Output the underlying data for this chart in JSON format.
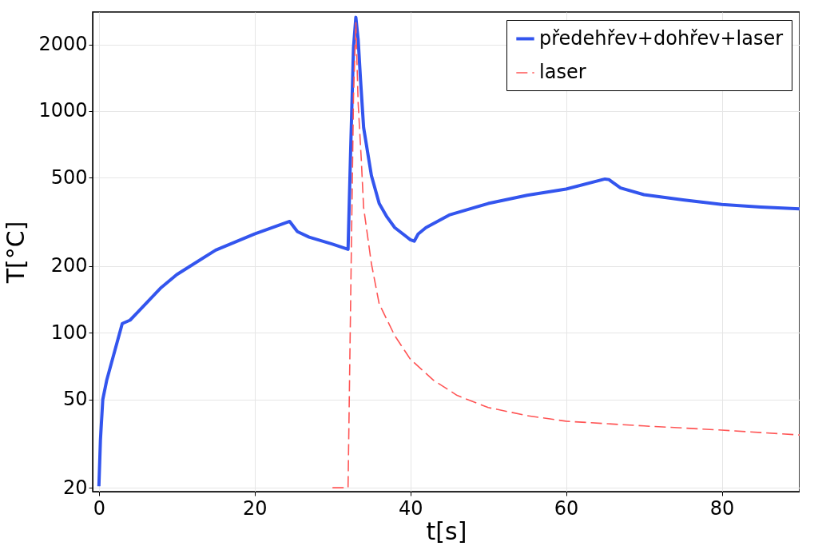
{
  "chart_data": {
    "type": "line",
    "xlabel": "t[s]",
    "ylabel": "T[°C]",
    "log": "y",
    "xlim": [
      -0.8,
      90
    ],
    "ylim": [
      19.2,
      2800
    ],
    "xticks": [
      0,
      20,
      40,
      60,
      80
    ],
    "yticks": [
      20,
      50,
      100,
      200,
      500,
      1000,
      2000
    ],
    "grid": true,
    "legend": "top right",
    "series": [
      {
        "name": "předehřev+dohřev+laser",
        "color": "#3355ee",
        "line_style": "solid",
        "x": [
          0,
          0.2,
          0.5,
          1,
          2,
          3,
          4,
          5,
          8,
          10,
          15,
          20,
          24.5,
          25.5,
          27,
          30,
          32,
          32.3,
          32.7,
          33,
          33.3,
          33.6,
          34,
          35,
          36,
          37,
          38,
          40,
          40.5,
          41,
          42,
          45,
          50,
          55,
          60,
          65,
          65.5,
          67,
          70,
          75,
          80,
          85,
          90
        ],
        "values": [
          20.3,
          33,
          50,
          61,
          82,
          110,
          114,
          124,
          160,
          183,
          236,
          279,
          318,
          286,
          270,
          251,
          238,
          604,
          1936,
          2650,
          2100,
          1390,
          843,
          512,
          383,
          333,
          298,
          263,
          259,
          279,
          298,
          340,
          383,
          417,
          445,
          494,
          491,
          450,
          420,
          398,
          379,
          369,
          362
        ]
      },
      {
        "name": "laser",
        "color": "#ff5555",
        "line_style": "dashed",
        "x": [
          30,
          32,
          32.3,
          32.7,
          33,
          33.3,
          33.7,
          34,
          35,
          36,
          38,
          40,
          43,
          46,
          50,
          55,
          60,
          70,
          80,
          90
        ],
        "values": [
          20,
          20,
          115,
          1170,
          2500,
          1080,
          604,
          367,
          205,
          135,
          97,
          76,
          61,
          52.2,
          46,
          42.3,
          39.9,
          38,
          36.4,
          34.6
        ]
      }
    ]
  }
}
